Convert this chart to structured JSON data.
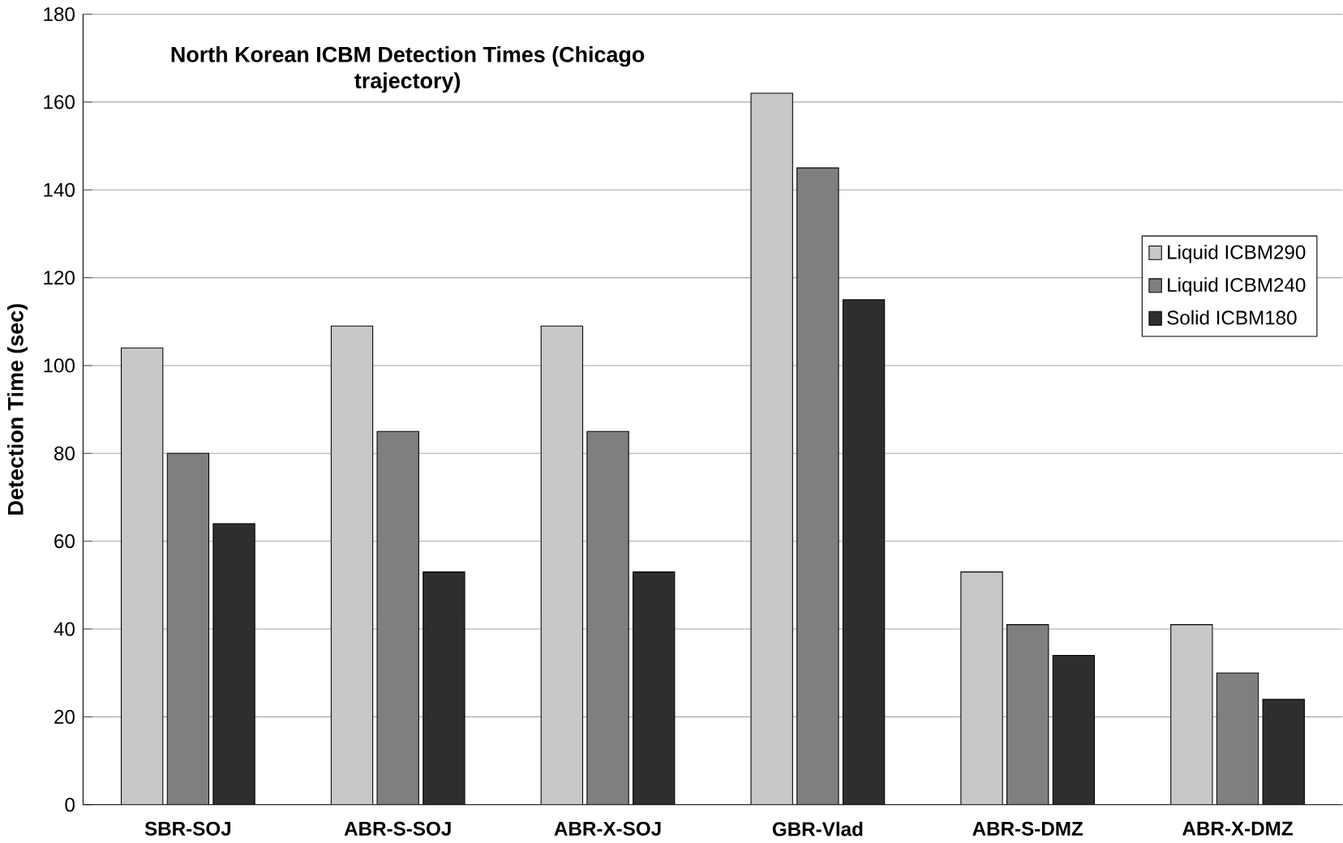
{
  "chart_data": {
    "type": "bar",
    "title": "North Korean ICBM Detection Times (Chicago trajectory)",
    "ylabel": "Detection Time (sec)",
    "categories": [
      "SBR-SOJ",
      "ABR-S-SOJ",
      "ABR-X-SOJ",
      "GBR-Vlad",
      "ABR-S-DMZ",
      "ABR-X-DMZ"
    ],
    "series": [
      {
        "name": "Liquid ICBM290",
        "color": "#c8c8c8",
        "values": [
          104,
          109,
          109,
          162,
          53,
          41
        ]
      },
      {
        "name": "Liquid ICBM240",
        "color": "#7f7f7f",
        "values": [
          80,
          85,
          85,
          145,
          41,
          30
        ]
      },
      {
        "name": "Solid ICBM180",
        "color": "#2e2e2e",
        "values": [
          64,
          53,
          53,
          115,
          34,
          24
        ]
      }
    ],
    "ylim": [
      0,
      180
    ],
    "yticks": [
      0,
      20,
      40,
      60,
      80,
      100,
      120,
      140,
      160,
      180
    ],
    "grid": "y",
    "legend": "right"
  }
}
